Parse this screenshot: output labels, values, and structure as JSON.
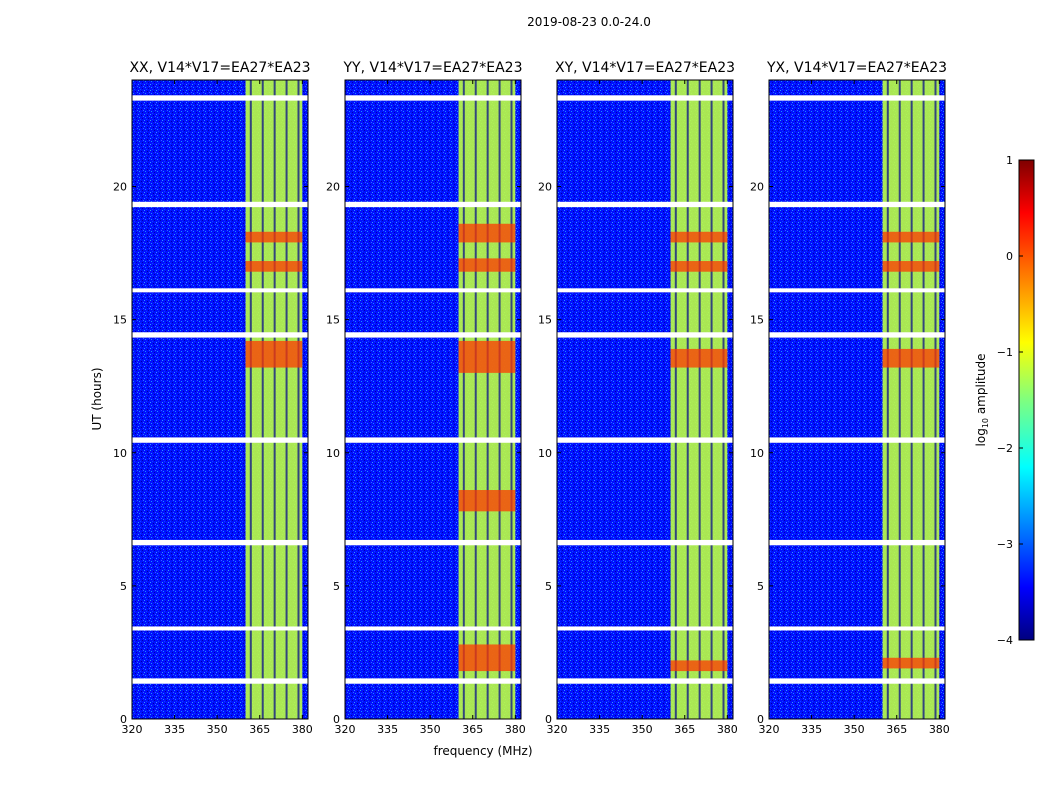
{
  "chart_data": {
    "type": "heatmap",
    "suptitle": "2019-08-23 0.0-24.0",
    "xlabel": "frequency (MHz)",
    "ylabel": "UT (hours)",
    "xlim": [
      320,
      382
    ],
    "ylim": [
      0,
      24
    ],
    "xticks": [
      320,
      335,
      350,
      365,
      380
    ],
    "yticks": [
      0,
      5,
      10,
      15,
      20
    ],
    "colorbar": {
      "label": "log10 amplitude",
      "label_main": "log",
      "label_sub": "10",
      "label_rest": " amplitude",
      "range": [
        -4,
        1
      ],
      "ticks": [
        1,
        0,
        -1,
        -2,
        -3,
        -4
      ]
    },
    "approx_background_log_amplitude": -3.3,
    "rfi_band_log_amplitude": -1.2,
    "rfi_band_mhz": [
      360,
      380
    ],
    "flagged_hours": [
      1.4,
      1.45,
      3.4,
      6.6,
      6.65,
      10.5,
      10.45,
      14.4,
      14.45,
      16.1,
      19.3,
      19.35,
      23.3,
      23.35
    ],
    "panels": [
      {
        "title": "XX, V14*V17=EA27*EA23",
        "hot_hours": [
          [
            13.2,
            14.2
          ],
          [
            16.8,
            17.2
          ],
          [
            17.9,
            18.3
          ]
        ]
      },
      {
        "title": "YY, V14*V17=EA27*EA23",
        "hot_hours": [
          [
            1.8,
            2.8
          ],
          [
            7.8,
            8.6
          ],
          [
            13.0,
            14.2
          ],
          [
            16.8,
            17.3
          ],
          [
            17.9,
            18.6
          ]
        ]
      },
      {
        "title": "XY, V14*V17=EA27*EA23",
        "hot_hours": [
          [
            1.8,
            2.2
          ],
          [
            13.2,
            13.9
          ],
          [
            16.8,
            17.2
          ],
          [
            17.9,
            18.3
          ]
        ]
      },
      {
        "title": "YX, V14*V17=EA27*EA23",
        "hot_hours": [
          [
            1.9,
            2.3
          ],
          [
            13.2,
            13.9
          ],
          [
            16.8,
            17.2
          ],
          [
            17.9,
            18.3
          ]
        ]
      }
    ]
  }
}
